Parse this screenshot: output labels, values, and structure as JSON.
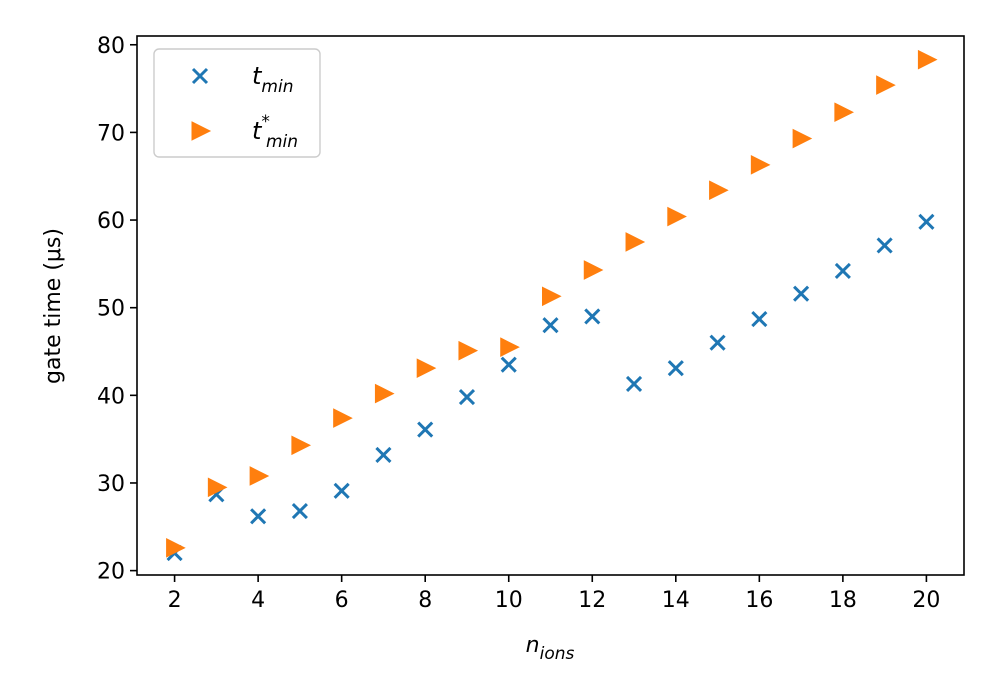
{
  "chart_data": {
    "type": "scatter",
    "xlabel": {
      "base": "n",
      "sub": "ions"
    },
    "ylabel": "gate time (μs)",
    "xlim": [
      1.1,
      20.9
    ],
    "ylim": [
      19.5,
      81.0
    ],
    "xticks": [
      2,
      4,
      6,
      8,
      10,
      12,
      14,
      16,
      18,
      20
    ],
    "yticks": [
      20,
      30,
      40,
      50,
      60,
      70,
      80
    ],
    "grid": false,
    "legend_position": "top-left",
    "x": [
      2,
      3,
      4,
      5,
      6,
      7,
      8,
      9,
      10,
      11,
      12,
      13,
      14,
      15,
      16,
      17,
      18,
      19,
      20
    ],
    "series": [
      {
        "name": "t_min",
        "label": {
          "base": "t",
          "sub": "min",
          "sup": ""
        },
        "marker": "x",
        "color": "#1f77b4",
        "values": [
          22.0,
          28.7,
          26.2,
          26.8,
          29.1,
          33.2,
          36.1,
          39.8,
          43.5,
          48.0,
          49.0,
          41.3,
          43.1,
          46.0,
          48.7,
          51.6,
          54.2,
          57.1,
          59.8
        ]
      },
      {
        "name": "t*_min",
        "label": {
          "base": "t",
          "sub": "min",
          "sup": "*"
        },
        "marker": "triangle-right",
        "color": "#ff7f0e",
        "values": [
          22.6,
          29.5,
          30.8,
          34.3,
          37.4,
          40.2,
          43.1,
          45.1,
          45.5,
          51.3,
          54.3,
          57.5,
          60.4,
          63.4,
          66.3,
          69.3,
          72.3,
          75.4,
          78.3
        ]
      }
    ]
  }
}
